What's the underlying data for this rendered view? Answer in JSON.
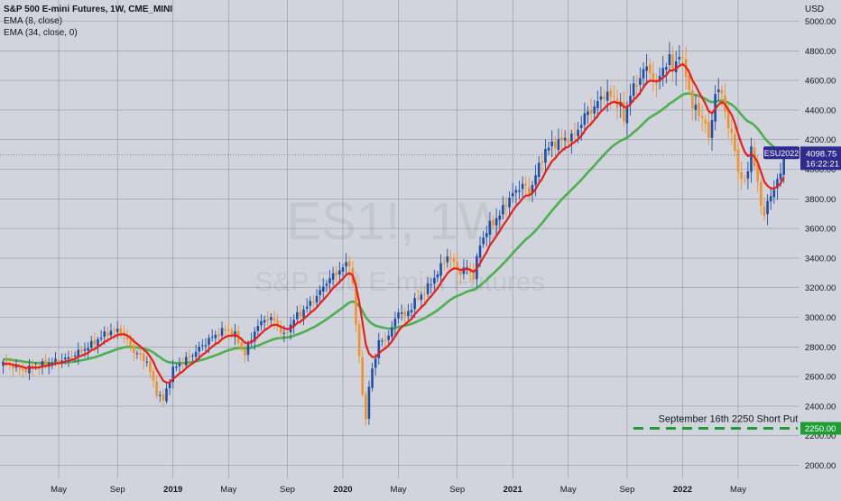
{
  "header": {
    "title": "S&P 500 E-mini Futures, 1W, CME_MINI",
    "ema_fast_label": "EMA (8, close)",
    "ema_slow_label": "EMA (34, close, 0)",
    "currency": "USD"
  },
  "watermark": {
    "symbol": "ES1!, 1W",
    "name": "S&P 500 E-mini Futures"
  },
  "price_tag": {
    "contract": "ESU2022",
    "price": "4098.75",
    "countdown": "16:22:21",
    "value": 4098.75
  },
  "annotation": {
    "text": "September 16th 2250 Short Put",
    "level": 2250,
    "level_label": "2250.00"
  },
  "colors": {
    "background": "#d1d4dc",
    "grid": "#4a4e5a",
    "candle_up": "#1e4fa8",
    "candle_down": "#f0932b",
    "ema_fast": "#e8201a",
    "ema_slow": "#4caf50",
    "short_put_line": "#1f9d35",
    "price_tag_bg": "#2e2a8f"
  },
  "chart_data": {
    "type": "candlestick",
    "title": "S&P 500 E-mini Futures, 1W, CME_MINI",
    "y_axis": {
      "ticks": [
        2000,
        2200,
        2400,
        2600,
        2800,
        3000,
        3200,
        3400,
        3600,
        3800,
        4000,
        4200,
        4400,
        4600,
        4800,
        5000
      ],
      "tick_labels": [
        "2000.00",
        "2200.00",
        "2400.00",
        "2600.00",
        "2800.00",
        "3000.00",
        "3200.00",
        "3400.00",
        "3600.00",
        "3800.00",
        "4000.00",
        "4200.00",
        "4400.00",
        "4600.00",
        "4800.00",
        "5000.00"
      ],
      "range": [
        1980,
        5010
      ]
    },
    "x_axis": {
      "labels": [
        "May",
        "Sep",
        "2019",
        "May",
        "Sep",
        "2020",
        "May",
        "Sep",
        "2021",
        "May",
        "Sep",
        "2022",
        "May"
      ],
      "label_weeks": [
        17,
        35,
        52,
        69,
        87,
        104,
        121,
        139,
        156,
        173,
        191,
        208,
        225
      ]
    },
    "weeks_visible": 243,
    "key_points": [
      {
        "week": 0,
        "close": 2700
      },
      {
        "week": 6,
        "close": 2640
      },
      {
        "week": 12,
        "close": 2680
      },
      {
        "week": 20,
        "close": 2725
      },
      {
        "week": 26,
        "close": 2800
      },
      {
        "week": 32,
        "close": 2900
      },
      {
        "week": 36,
        "close": 2915
      },
      {
        "week": 40,
        "close": 2770
      },
      {
        "week": 44,
        "close": 2700
      },
      {
        "week": 47,
        "close": 2490
      },
      {
        "week": 49,
        "close": 2440
      },
      {
        "week": 52,
        "close": 2650
      },
      {
        "week": 58,
        "close": 2750
      },
      {
        "week": 63,
        "close": 2850
      },
      {
        "week": 68,
        "close": 2920
      },
      {
        "week": 71,
        "close": 2880
      },
      {
        "week": 74,
        "close": 2750
      },
      {
        "week": 77,
        "close": 2910
      },
      {
        "week": 80,
        "close": 2990
      },
      {
        "week": 83,
        "close": 2980
      },
      {
        "week": 86,
        "close": 2870
      },
      {
        "week": 89,
        "close": 2990
      },
      {
        "week": 92,
        "close": 3050
      },
      {
        "week": 96,
        "close": 3140
      },
      {
        "week": 99,
        "close": 3240
      },
      {
        "week": 101,
        "close": 3280
      },
      {
        "week": 103,
        "close": 3320
      },
      {
        "week": 106,
        "close": 3370
      },
      {
        "week": 107,
        "close": 3220
      },
      {
        "week": 108,
        "close": 2950
      },
      {
        "week": 110,
        "close": 2500
      },
      {
        "week": 111,
        "close": 2300
      },
      {
        "week": 112,
        "close": 2530
      },
      {
        "week": 113,
        "close": 2650
      },
      {
        "week": 115,
        "close": 2830
      },
      {
        "week": 117,
        "close": 2850
      },
      {
        "week": 119,
        "close": 2920
      },
      {
        "week": 121,
        "close": 3050
      },
      {
        "week": 123,
        "close": 3000
      },
      {
        "week": 126,
        "close": 3110
      },
      {
        "week": 128,
        "close": 3150
      },
      {
        "week": 131,
        "close": 3230
      },
      {
        "week": 134,
        "close": 3340
      },
      {
        "week": 136,
        "close": 3420
      },
      {
        "week": 138,
        "close": 3360
      },
      {
        "week": 140,
        "close": 3300
      },
      {
        "week": 142,
        "close": 3340
      },
      {
        "week": 144,
        "close": 3270
      },
      {
        "week": 146,
        "close": 3500
      },
      {
        "week": 149,
        "close": 3620
      },
      {
        "week": 152,
        "close": 3690
      },
      {
        "week": 154,
        "close": 3780
      },
      {
        "week": 156,
        "close": 3830
      },
      {
        "week": 159,
        "close": 3900
      },
      {
        "week": 161,
        "close": 3840
      },
      {
        "week": 163,
        "close": 3960
      },
      {
        "week": 166,
        "close": 4130
      },
      {
        "week": 169,
        "close": 4180
      },
      {
        "week": 172,
        "close": 4200
      },
      {
        "week": 175,
        "close": 4230
      },
      {
        "week": 178,
        "close": 4360
      },
      {
        "week": 181,
        "close": 4420
      },
      {
        "week": 184,
        "close": 4510
      },
      {
        "week": 187,
        "close": 4480
      },
      {
        "week": 189,
        "close": 4420
      },
      {
        "week": 190,
        "close": 4330
      },
      {
        "week": 192,
        "close": 4520
      },
      {
        "week": 194,
        "close": 4570
      },
      {
        "week": 196,
        "close": 4680
      },
      {
        "week": 198,
        "close": 4660
      },
      {
        "week": 200,
        "close": 4560
      },
      {
        "week": 202,
        "close": 4690
      },
      {
        "week": 204,
        "close": 4740
      },
      {
        "week": 205,
        "close": 4680
      },
      {
        "week": 207,
        "close": 4780
      },
      {
        "week": 209,
        "close": 4650
      },
      {
        "week": 211,
        "close": 4420
      },
      {
        "week": 213,
        "close": 4390
      },
      {
        "week": 215,
        "close": 4300
      },
      {
        "week": 216,
        "close": 4200
      },
      {
        "week": 218,
        "close": 4510
      },
      {
        "week": 220,
        "close": 4520
      },
      {
        "week": 222,
        "close": 4280
      },
      {
        "week": 224,
        "close": 4150
      },
      {
        "week": 225,
        "close": 3980
      },
      {
        "week": 227,
        "close": 3900
      },
      {
        "week": 229,
        "close": 4140
      },
      {
        "week": 231,
        "close": 3900
      },
      {
        "week": 233,
        "close": 3670
      },
      {
        "week": 234,
        "close": 3780
      },
      {
        "week": 235,
        "close": 3820
      },
      {
        "week": 236,
        "close": 3880
      },
      {
        "week": 238,
        "close": 3960
      },
      {
        "week": 239,
        "close": 4098.75
      }
    ]
  }
}
